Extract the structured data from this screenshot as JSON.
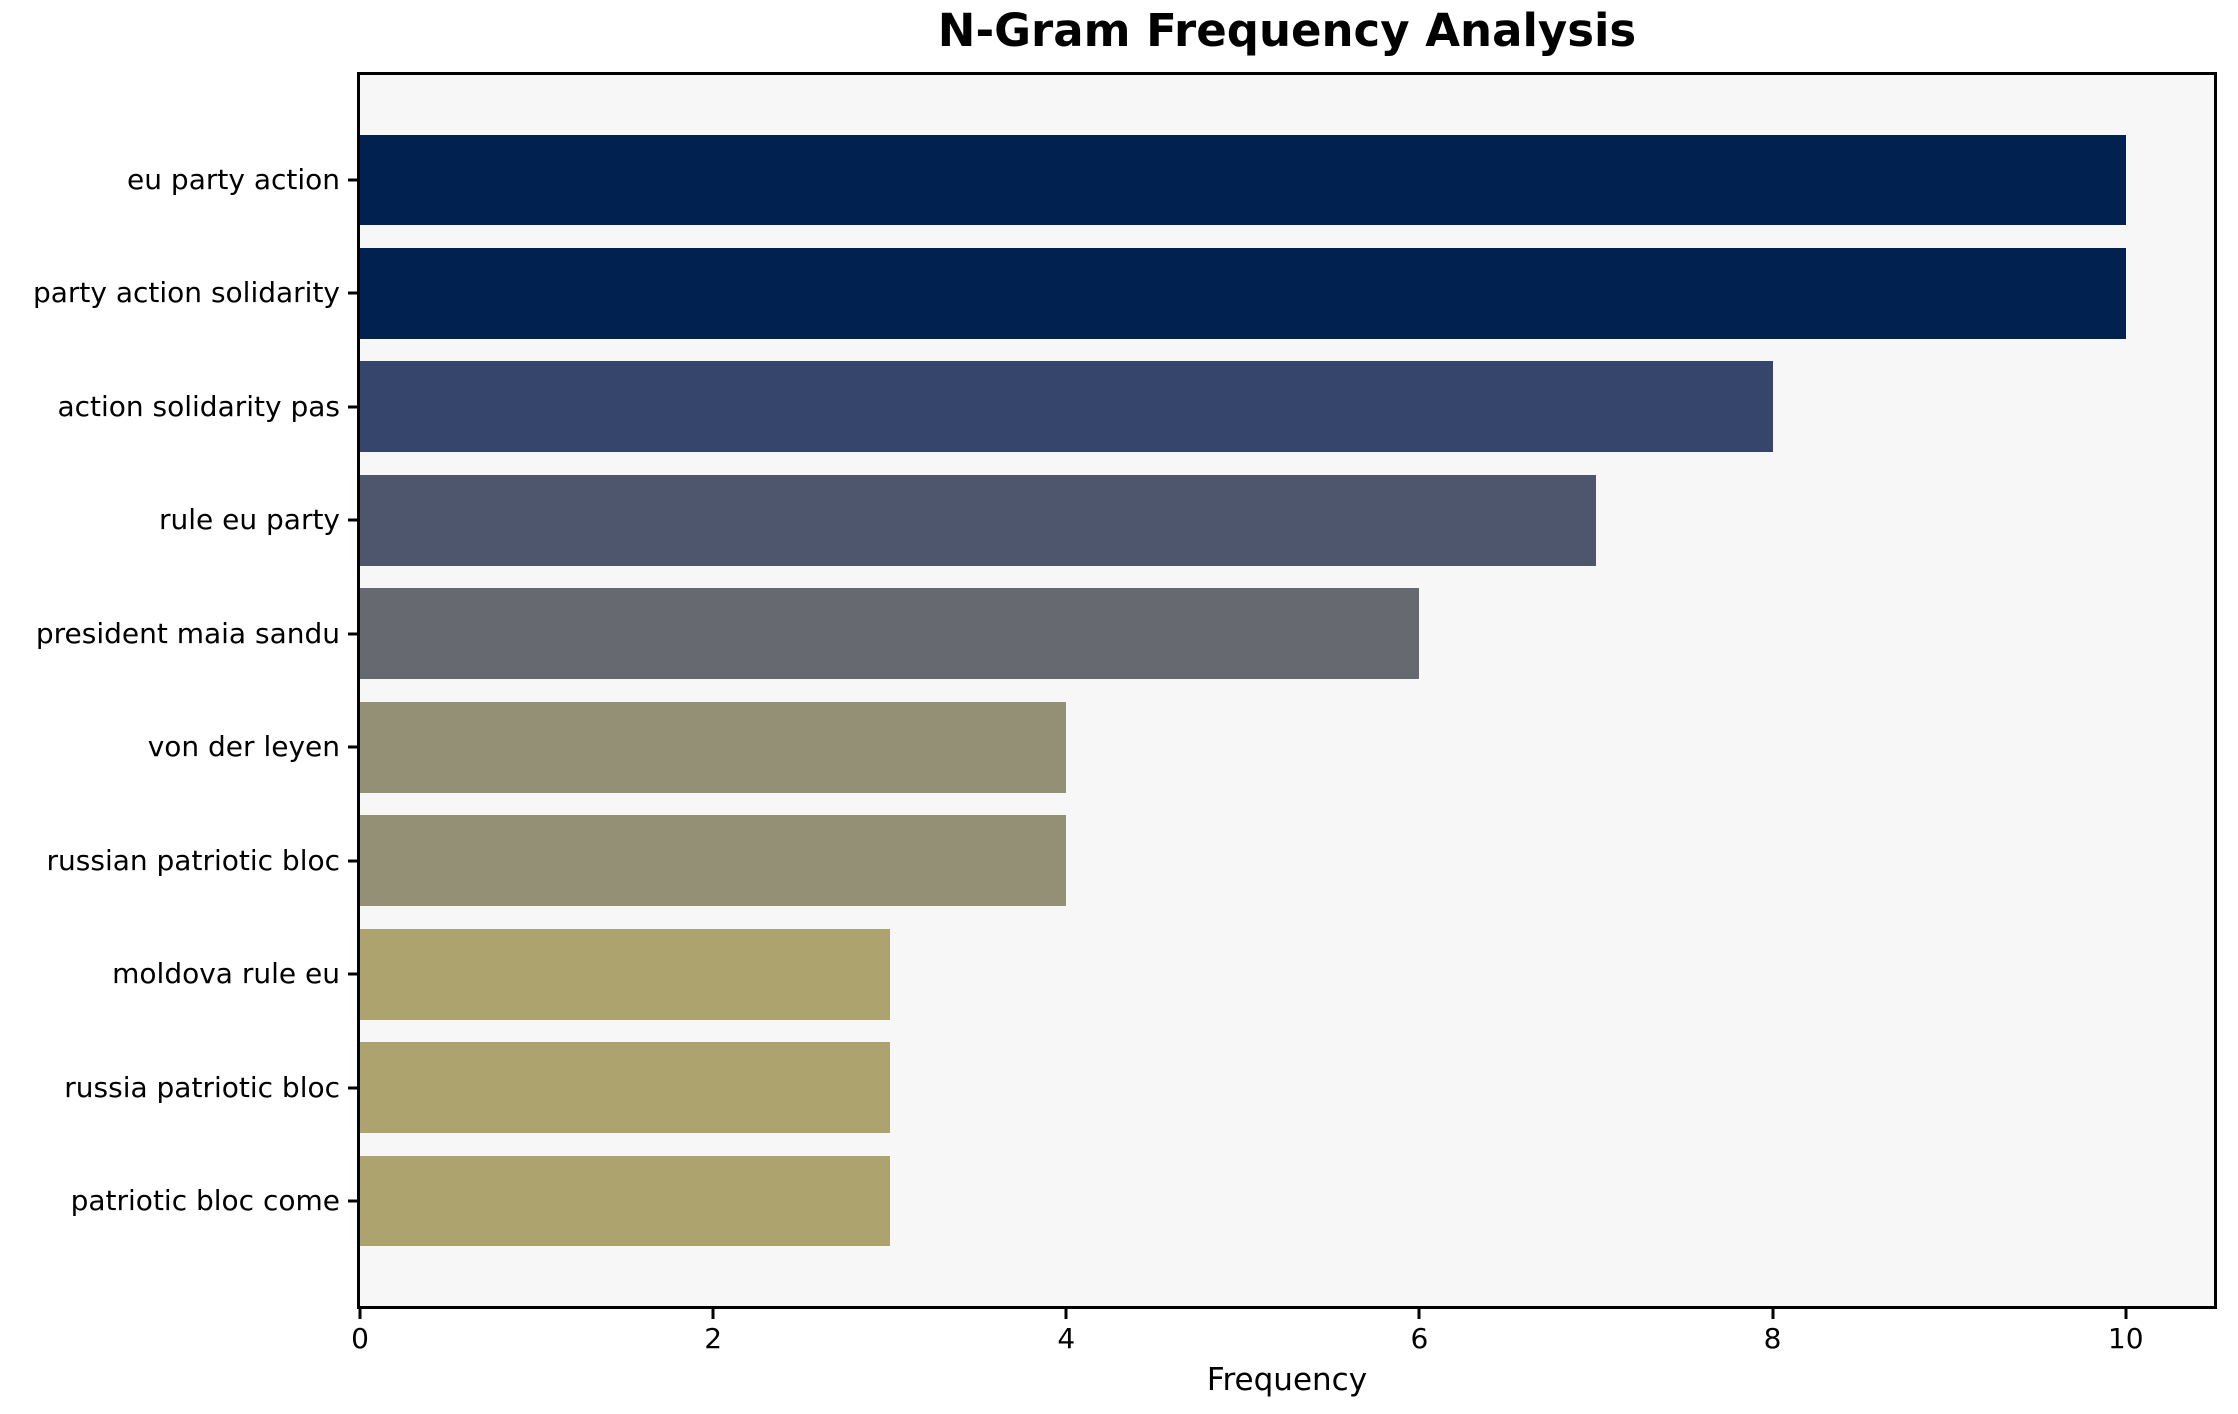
{
  "chart_data": {
    "type": "bar",
    "orientation": "horizontal",
    "title": "N-Gram Frequency Analysis",
    "xlabel": "Frequency",
    "ylabel": "",
    "categories": [
      "eu party action",
      "party action solidarity",
      "action solidarity pas",
      "rule eu party",
      "president maia sandu",
      "von der leyen",
      "russian patriotic bloc",
      "moldova rule eu",
      "russia patriotic bloc",
      "patriotic bloc come"
    ],
    "values": [
      10,
      10,
      8,
      7,
      6,
      4,
      4,
      3,
      3,
      3
    ],
    "bar_colors": [
      "#012250",
      "#012250",
      "#35456c",
      "#4d566d",
      "#666970",
      "#949076",
      "#949076",
      "#ada36f",
      "#ada36f",
      "#ada36f"
    ],
    "x_ticks": [
      "0",
      "2",
      "4",
      "6",
      "8",
      "10"
    ],
    "x_tick_values": [
      0,
      2,
      4,
      6,
      8,
      10
    ],
    "xlim": [
      0,
      10.5
    ],
    "grid": false,
    "legend": null,
    "colormap": "cividis",
    "plot_background": "#f7f7f7",
    "figure_background": "#ffffff",
    "spine_color": "#000000"
  }
}
